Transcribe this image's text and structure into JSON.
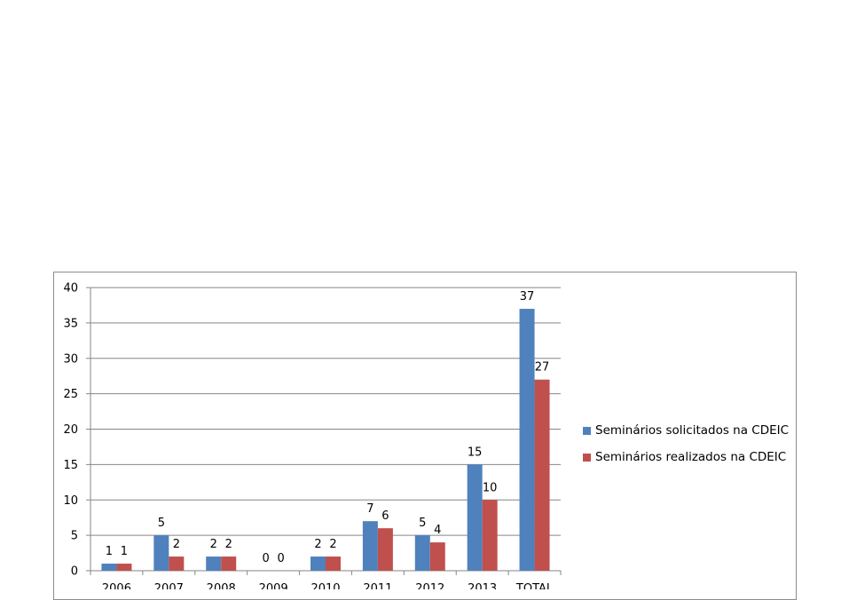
{
  "chart_data": {
    "type": "bar",
    "categories": [
      "2006",
      "2007",
      "2008",
      "2009",
      "2010",
      "2011",
      "2012",
      "2013",
      "TOTAL"
    ],
    "series": [
      {
        "name": "Seminários solicitados na CDEIC",
        "color": "#4f81bd",
        "values": [
          1,
          5,
          2,
          0,
          2,
          7,
          5,
          15,
          37
        ]
      },
      {
        "name": "Seminários realizados na CDEIC",
        "color": "#c0504d",
        "values": [
          1,
          2,
          2,
          0,
          2,
          6,
          4,
          10,
          27
        ]
      }
    ],
    "yticks": [
      "0",
      "5",
      "10",
      "15",
      "20",
      "25",
      "30",
      "35",
      "40"
    ],
    "ylim": [
      0,
      40
    ],
    "grid": true,
    "legend_position": "right",
    "data_labels": true
  }
}
